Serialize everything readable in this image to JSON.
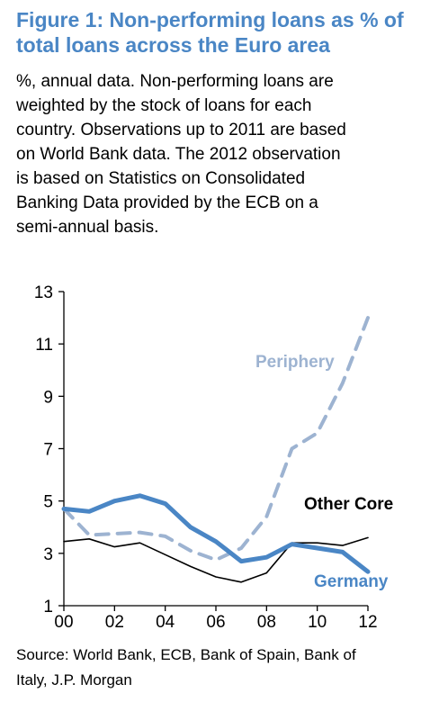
{
  "header": {
    "title_line1": "Figure 1: Non-performing loans as % of",
    "title_line2": "total loans across the Euro area",
    "subtitle_lines": [
      "%, annual data. Non-performing loans are",
      "weighted by the stock of loans for each",
      "country. Observations up to 2011 are based",
      "on World Bank data. The 2012 observation",
      "is based on Statistics on Consolidated",
      "Banking Data provided by the ECB on a",
      "semi-annual basis."
    ]
  },
  "footer": {
    "source_line1": "Source: World Bank, ECB, Bank of Spain, Bank of",
    "source_line2": "Italy, J.P. Morgan"
  },
  "chart_data": {
    "type": "line",
    "x": [
      0,
      1,
      2,
      3,
      4,
      5,
      6,
      7,
      8,
      9,
      10,
      11,
      12
    ],
    "xlim": [
      0,
      12
    ],
    "ylim": [
      1,
      13
    ],
    "x_ticks": [
      0,
      2,
      4,
      6,
      8,
      10,
      12
    ],
    "x_tick_labels": [
      "00",
      "02",
      "04",
      "06",
      "08",
      "10",
      "12"
    ],
    "y_ticks": [
      1,
      3,
      5,
      7,
      9,
      11,
      13
    ],
    "y_tick_labels": [
      "1",
      "3",
      "5",
      "7",
      "9",
      "11",
      "13"
    ],
    "grid": false,
    "series": [
      {
        "name": "Periphery",
        "values": [
          4.7,
          3.7,
          3.75,
          3.8,
          3.65,
          3.1,
          2.75,
          3.2,
          4.4,
          7.0,
          7.6,
          9.5,
          12.0
        ],
        "color": "#9db3d1",
        "style": "dashed"
      },
      {
        "name": "Other Core",
        "values": [
          3.45,
          3.55,
          3.25,
          3.4,
          2.95,
          2.5,
          2.1,
          1.9,
          2.25,
          3.4,
          3.4,
          3.3,
          3.6
        ],
        "color": "#000000",
        "style": "thin"
      },
      {
        "name": "Germany",
        "values": [
          4.7,
          4.6,
          5.0,
          5.2,
          4.9,
          4.0,
          3.45,
          2.7,
          2.85,
          3.35,
          3.2,
          3.05,
          2.3
        ],
        "color": "#4a86c5",
        "style": "thick"
      }
    ]
  }
}
